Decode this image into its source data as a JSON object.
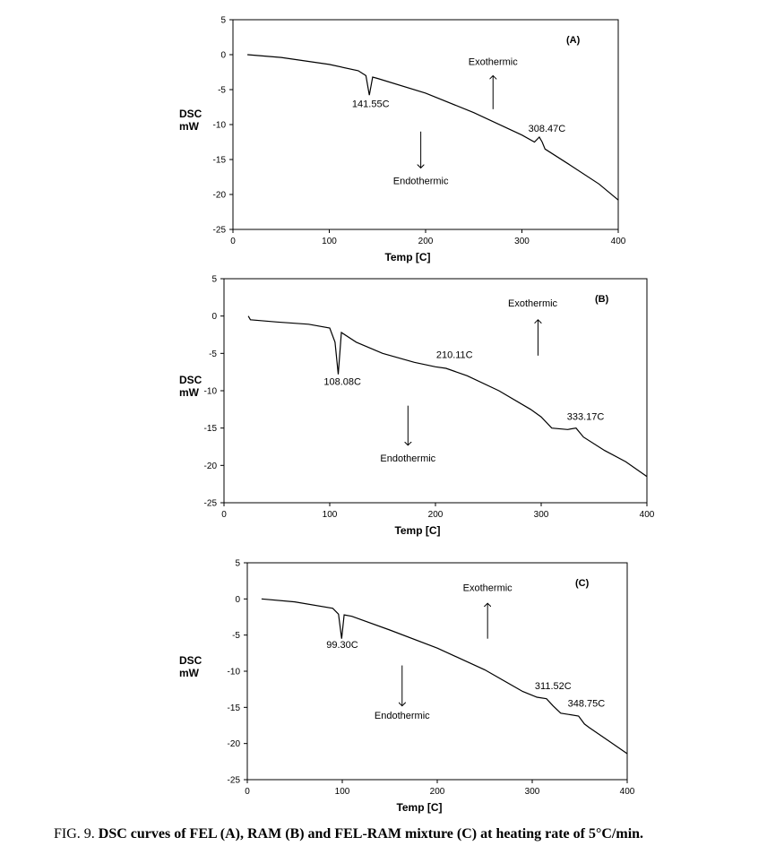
{
  "caption": {
    "prefix": "FIG. 9.",
    "text": "DSC curves of FEL (A), RAM (B) and FEL-RAM mixture (C) at heating rate of 5°C/min."
  },
  "chart_data": [
    {
      "type": "line",
      "panel_label": "(A)",
      "ylabel_line1": "DSC",
      "ylabel_line2": "mW",
      "xlabel": "Temp [C]",
      "xlim": [
        0,
        400
      ],
      "ylim": [
        -25,
        5
      ],
      "xticks": [
        0,
        100,
        200,
        300,
        400
      ],
      "yticks": [
        5,
        0,
        -5,
        -10,
        -15,
        -20,
        -25
      ],
      "grid": false,
      "series": [
        {
          "x": [
            15,
            50,
            100,
            130,
            138,
            141.55,
            145,
            150,
            200,
            250,
            300,
            313,
            318,
            321,
            324,
            350,
            380,
            400
          ],
          "y": [
            0,
            -0.4,
            -1.4,
            -2.3,
            -3,
            -5.8,
            -3.2,
            -3.4,
            -5.5,
            -8.3,
            -11.5,
            -12.5,
            -11.8,
            -12.5,
            -13.5,
            -15.8,
            -18.5,
            -20.8
          ]
        }
      ],
      "annotations": [
        {
          "text": "141.55C",
          "x": 143,
          "y": -7.5
        },
        {
          "text": "308.47C",
          "x": 326,
          "y": -11
        }
      ],
      "arrows": [
        {
          "label": "Exothermic",
          "direction": "up",
          "x": 270,
          "y_from": -7.8,
          "y_to": -3,
          "label_x": 270,
          "label_y": -1.5
        },
        {
          "label": "Endothermic",
          "direction": "down",
          "x": 195,
          "y_from": -11,
          "y_to": -16.2,
          "label_x": 195,
          "label_y": -18.5
        }
      ]
    },
    {
      "type": "line",
      "panel_label": "(B)",
      "ylabel_line1": "DSC",
      "ylabel_line2": "mW",
      "xlabel": "Temp [C]",
      "xlim": [
        0,
        400
      ],
      "ylim": [
        -25,
        5
      ],
      "xticks": [
        0,
        100,
        200,
        300,
        400
      ],
      "yticks": [
        5,
        0,
        -5,
        -10,
        -15,
        -20,
        -25
      ],
      "grid": false,
      "series": [
        {
          "x": [
            23,
            25,
            50,
            80,
            100,
            105,
            108.08,
            111,
            125,
            150,
            180,
            200,
            210,
            230,
            260,
            290,
            300,
            310,
            325,
            333,
            340,
            360,
            380,
            400
          ],
          "y": [
            0,
            -0.5,
            -0.8,
            -1.1,
            -1.6,
            -3.5,
            -7.8,
            -2.2,
            -3.5,
            -5,
            -6.2,
            -6.8,
            -7,
            -8,
            -10,
            -12.5,
            -13.5,
            -15,
            -15.2,
            -15,
            -16.2,
            -18,
            -19.5,
            -21.5
          ]
        }
      ],
      "annotations": [
        {
          "text": "108.08C",
          "x": 112,
          "y": -9.2
        },
        {
          "text": "210.11C",
          "x": 218,
          "y": -5.6
        },
        {
          "text": "333.17C",
          "x": 342,
          "y": -13.9
        }
      ],
      "arrows": [
        {
          "label": "Exothermic",
          "direction": "up",
          "x": 297,
          "y_from": -5.3,
          "y_to": -0.5,
          "label_x": 292,
          "label_y": 1.3
        },
        {
          "label": "Endothermic",
          "direction": "down",
          "x": 174,
          "y_from": -12,
          "y_to": -17.3,
          "label_x": 174,
          "label_y": -19.5
        }
      ]
    },
    {
      "type": "line",
      "panel_label": "(C)",
      "ylabel_line1": "DSC",
      "ylabel_line2": "mW",
      "xlabel": "Temp [C]",
      "xlim": [
        0,
        400
      ],
      "ylim": [
        -25,
        5
      ],
      "xticks": [
        0,
        100,
        200,
        300,
        400
      ],
      "yticks": [
        5,
        0,
        -5,
        -10,
        -15,
        -20,
        -25
      ],
      "grid": false,
      "series": [
        {
          "x": [
            15,
            50,
            90,
            96,
            99.3,
            102,
            110,
            150,
            200,
            250,
            290,
            305,
            315,
            322,
            330,
            348.75,
            355,
            360,
            380,
            400
          ],
          "y": [
            0,
            -0.4,
            -1.3,
            -2.1,
            -5.5,
            -2.2,
            -2.4,
            -4.3,
            -6.8,
            -9.8,
            -12.8,
            -13.6,
            -13.8,
            -14.8,
            -15.8,
            -16.2,
            -17.3,
            -17.8,
            -19.6,
            -21.4
          ]
        }
      ],
      "annotations": [
        {
          "text": "99.30C",
          "x": 100,
          "y": -6.8
        },
        {
          "text": "311.52C",
          "x": 322,
          "y": -12.5
        },
        {
          "text": "348.75C",
          "x": 357,
          "y": -14.9
        }
      ],
      "arrows": [
        {
          "label": "Exothermic",
          "direction": "up",
          "x": 253,
          "y_from": -5.5,
          "y_to": -0.6,
          "label_x": 253,
          "label_y": 1.1
        },
        {
          "label": "Endothermic",
          "direction": "down",
          "x": 163,
          "y_from": -9.2,
          "y_to": -14.8,
          "label_x": 163,
          "label_y": -16.6
        }
      ]
    }
  ]
}
